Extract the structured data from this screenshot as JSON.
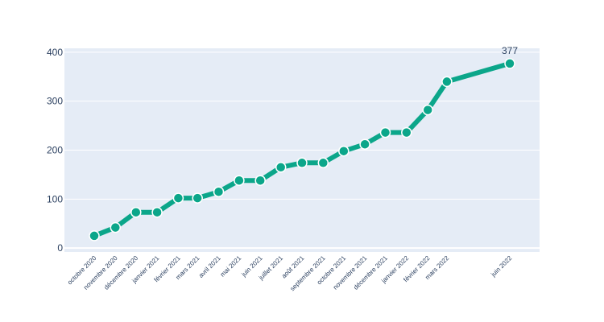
{
  "chart_data": {
    "type": "line",
    "x": [
      "2020-10-01",
      "2020-11-01",
      "2020-12-01",
      "2021-01-01",
      "2021-02-01",
      "2021-03-01",
      "2021-04-01",
      "2021-05-01",
      "2021-06-01",
      "2021-07-01",
      "2021-08-01",
      "2021-09-01",
      "2021-10-01",
      "2021-11-01",
      "2021-12-01",
      "2022-01-01",
      "2022-02-01",
      "2022-03-01",
      "2022-06-01"
    ],
    "tick_labels": [
      "octobre 2020",
      "novembre 2020",
      "décembre 2020",
      "janvier 2021",
      "février 2021",
      "mars 2021",
      "avril 2021",
      "mai 2021",
      "juin 2021",
      "juillet 2021",
      "août 2021",
      "septembre 2021",
      "octobre 2021",
      "novembre 2021",
      "décembre 2021",
      "janvier 2022",
      "février 2022",
      "mars 2022",
      "juin 2022"
    ],
    "series": [
      {
        "values": [
          25,
          42,
          73,
          73,
          102,
          102,
          115,
          138,
          138,
          165,
          174,
          174,
          198,
          212,
          236,
          236,
          282,
          340,
          377
        ],
        "color": "#0ba68a"
      }
    ],
    "data_labels": [
      {
        "index": 18,
        "text": "377"
      }
    ],
    "y_ticks": [
      0,
      100,
      200,
      300,
      400
    ],
    "ylim": [
      -8,
      408
    ],
    "grid": true,
    "plot_bg": "#e5ecf6",
    "title": "",
    "xlabel": "",
    "ylabel": ""
  }
}
